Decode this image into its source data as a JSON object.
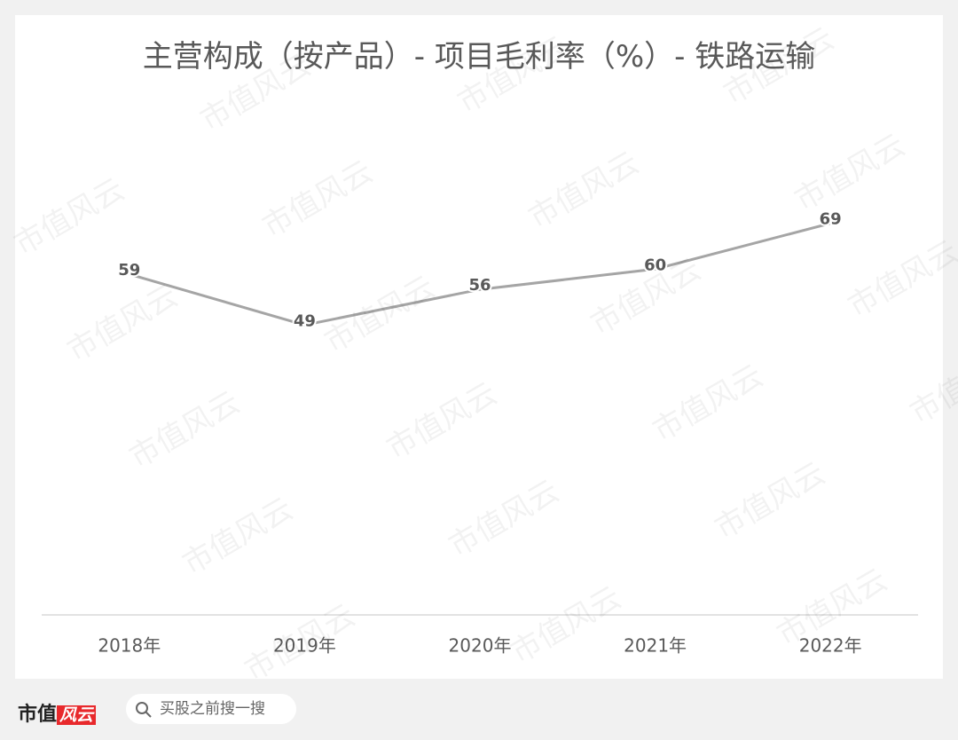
{
  "chart_data": {
    "type": "line",
    "title": "主营构成（按产品）- 项目毛利率（%）- 铁路运输",
    "categories": [
      "2018年",
      "2019年",
      "2020年",
      "2021年",
      "2022年"
    ],
    "series": [
      {
        "name": "项目毛利率",
        "color": "#a5a5a5",
        "values": [
          59,
          49,
          56,
          60,
          69
        ]
      }
    ],
    "ylim": [
      -8,
      85
    ],
    "watermark": "市值风云"
  },
  "footer": {
    "logo_left": "市值",
    "logo_right": "风云",
    "search": "买股之前搜一搜"
  }
}
